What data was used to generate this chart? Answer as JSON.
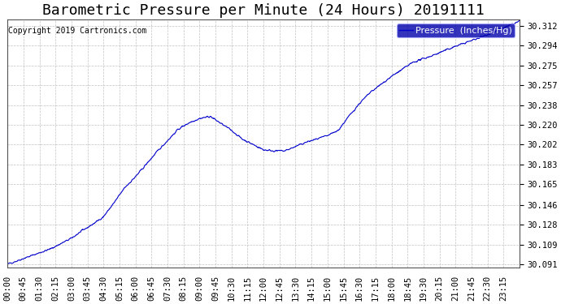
{
  "title": "Barometric Pressure per Minute (24 Hours) 20191111",
  "copyright_text": "Copyright 2019 Cartronics.com",
  "legend_label": "Pressure  (Inches/Hg)",
  "line_color": "#0000cc",
  "background_color": "#ffffff",
  "plot_bg_color": "#ffffff",
  "grid_color": "#bbbbbb",
  "ylim": [
    30.088,
    30.318
  ],
  "yticks": [
    30.091,
    30.109,
    30.128,
    30.146,
    30.165,
    30.183,
    30.202,
    30.22,
    30.238,
    30.257,
    30.275,
    30.294,
    30.312
  ],
  "xtick_interval_minutes": 45,
  "total_minutes": 1440,
  "legend_facecolor": "#0000aa",
  "legend_textcolor": "#ffffff",
  "title_fontsize": 13,
  "tick_fontsize": 7.5,
  "copyright_fontsize": 7
}
